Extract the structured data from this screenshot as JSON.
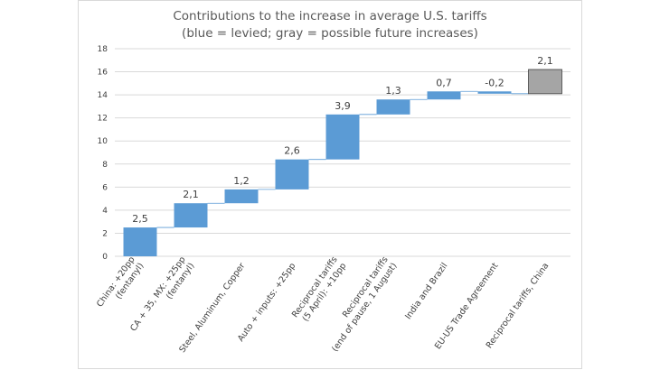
{
  "chart_data": {
    "type": "bar",
    "subtype": "waterfall",
    "title": "Contributions to the increase in average U.S. tariffs",
    "subtitle": "(blue = levied; gray = possible future increases)",
    "ylim": [
      0,
      18
    ],
    "yticks": [
      "0",
      "2",
      "4",
      "6",
      "8",
      "10",
      "12",
      "14",
      "16",
      "18"
    ],
    "grid": true,
    "colors": {
      "levied": "#5b9bd5",
      "future": "#a5a5a5"
    },
    "categories": [
      [
        "China: +20pp",
        "(fentanyl)"
      ],
      [
        "CA + 35, MX: +25pp",
        "(fentanyl)"
      ],
      [
        "Steel, Aluminum, Copper"
      ],
      [
        "Auto + inputs: +25pp"
      ],
      [
        "Reciprocal tariffs",
        "(5 April): +10pp"
      ],
      [
        "Reciprocal tariffs",
        "(end of pause,  1 August)"
      ],
      [
        "India and Brazil"
      ],
      [
        "EU-US Trade Agreement"
      ],
      [
        "Reciprocal tariffs, China"
      ]
    ],
    "values": [
      2.5,
      2.1,
      1.2,
      2.6,
      3.9,
      1.3,
      0.7,
      -0.2,
      2.1
    ],
    "labels": [
      "2,5",
      "2,1",
      "1,2",
      "2,6",
      "3,9",
      "1,3",
      "0,7",
      "-0,2",
      "2,1"
    ],
    "status": [
      "levied",
      "levied",
      "levied",
      "levied",
      "levied",
      "levied",
      "levied",
      "levied",
      "future"
    ]
  }
}
